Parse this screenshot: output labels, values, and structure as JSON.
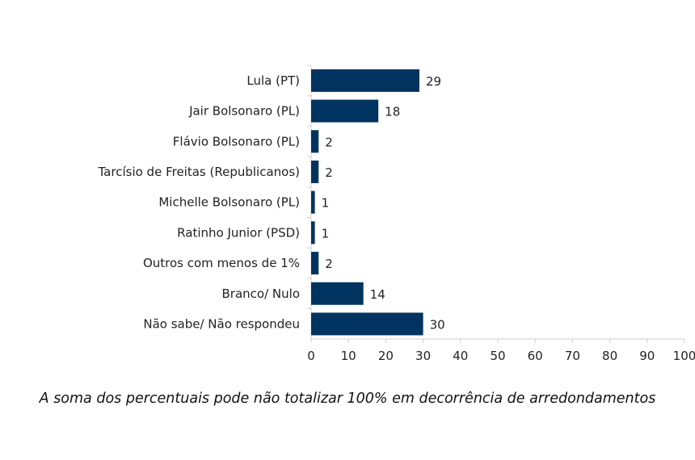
{
  "chart_data": {
    "type": "bar",
    "orientation": "horizontal",
    "categories": [
      "Lula (PT)",
      "Jair Bolsonaro (PL)",
      "Flávio Bolsonaro (PL)",
      "Tarcísio de Freitas (Republicanos)",
      "Michelle Bolsonaro (PL)",
      "Ratinho Junior (PSD)",
      "Outros com menos de 1%",
      "Branco/ Nulo",
      "Não sabe/ Não respondeu"
    ],
    "values": [
      29,
      18,
      2,
      2,
      1,
      1,
      2,
      14,
      30
    ],
    "xlim": [
      0,
      100
    ],
    "xticks": [
      0,
      10,
      20,
      30,
      40,
      50,
      60,
      70,
      80,
      90,
      100
    ],
    "title": "",
    "xlabel": "",
    "ylabel": "",
    "grid": false,
    "bar_color": "#00335f",
    "note": "A soma dos percentuais pode não totalizar 100% em decorrência de arredondamentos"
  }
}
